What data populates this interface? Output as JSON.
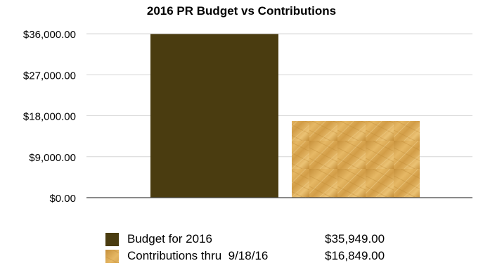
{
  "chart_data": {
    "type": "bar",
    "title": "2016 PR Budget vs Contributions",
    "categories": [
      "Budget for 2016",
      "Contributions thru  9/18/16"
    ],
    "values": [
      35949.0,
      16849.0
    ],
    "ylim": [
      0,
      36000
    ],
    "yticks": [
      "$0.00",
      "$9,000.00",
      "$18,000.00",
      "$27,000.00",
      "$36,000.00"
    ],
    "grid": true,
    "legend_position": "bottom",
    "legend": [
      {
        "label": "Budget for 2016",
        "value": "$35,949.00"
      },
      {
        "label": "Contributions thru  9/18/16",
        "value": "$16,849.00"
      }
    ],
    "colors": {
      "budget": "#4a3c10",
      "contributions_base": "#d9a54a",
      "contributions_light": "#edc87a",
      "contributions_dark": "#b9842e",
      "grid": "#d6d6d6",
      "axis": "#444444"
    }
  }
}
